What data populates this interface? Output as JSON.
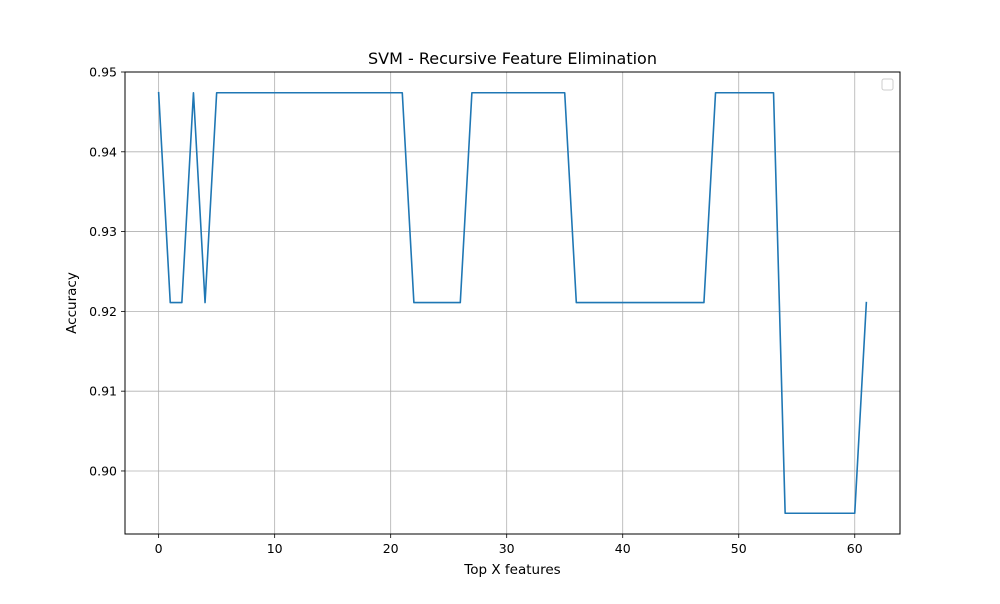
{
  "chart_data": {
    "type": "line",
    "title": "SVM - Recursive Feature Elimination",
    "xlabel": "Top X features",
    "ylabel": "Accuracy",
    "xlim": [
      -2.9,
      63.9
    ],
    "ylim": [
      0.8921,
      0.95
    ],
    "x_ticks": [
      0,
      10,
      20,
      30,
      40,
      50,
      60
    ],
    "y_ticks": [
      0.9,
      0.91,
      0.92,
      0.93,
      0.94,
      0.95
    ],
    "x_tick_labels": [
      "0",
      "10",
      "20",
      "30",
      "40",
      "50",
      "60"
    ],
    "y_tick_labels": [
      "0.90",
      "0.91",
      "0.92",
      "0.93",
      "0.94",
      "0.95"
    ],
    "grid": true,
    "legend": "upper right (empty)",
    "series": [
      {
        "color": "#1f77b4",
        "x": [
          0,
          1,
          2,
          3,
          4,
          5,
          6,
          7,
          8,
          9,
          10,
          11,
          12,
          13,
          14,
          15,
          16,
          17,
          18,
          19,
          20,
          21,
          22,
          23,
          24,
          25,
          26,
          27,
          28,
          29,
          30,
          31,
          32,
          33,
          34,
          35,
          36,
          37,
          38,
          39,
          40,
          41,
          42,
          43,
          44,
          45,
          46,
          47,
          48,
          49,
          50,
          51,
          52,
          53,
          54,
          55,
          56,
          57,
          58,
          59,
          60,
          61
        ],
        "y": [
          0.9474,
          0.9211,
          0.9211,
          0.9474,
          0.9211,
          0.9474,
          0.9474,
          0.9474,
          0.9474,
          0.9474,
          0.9474,
          0.9474,
          0.9474,
          0.9474,
          0.9474,
          0.9474,
          0.9474,
          0.9474,
          0.9474,
          0.9474,
          0.9474,
          0.9474,
          0.9211,
          0.9211,
          0.9211,
          0.9211,
          0.9211,
          0.9474,
          0.9474,
          0.9474,
          0.9474,
          0.9474,
          0.9474,
          0.9474,
          0.9474,
          0.9474,
          0.9211,
          0.9211,
          0.9211,
          0.9211,
          0.9211,
          0.9211,
          0.9211,
          0.9211,
          0.9211,
          0.9211,
          0.9211,
          0.9211,
          0.9474,
          0.9474,
          0.9474,
          0.9474,
          0.9474,
          0.9474,
          0.8947,
          0.8947,
          0.8947,
          0.8947,
          0.8947,
          0.8947,
          0.8947,
          0.9211
        ]
      }
    ]
  }
}
